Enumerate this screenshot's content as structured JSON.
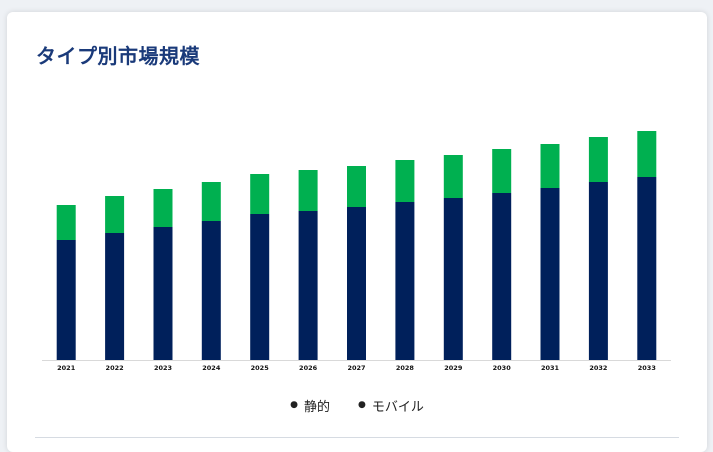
{
  "page": {
    "title": "タイプ別市場規模"
  },
  "legend": {
    "items": [
      {
        "label": "静的",
        "color": "#00205b"
      },
      {
        "label": "モバイル",
        "color": "#00b050"
      }
    ]
  },
  "chart_data": {
    "type": "bar",
    "stacked": true,
    "title": "タイプ別市場規模",
    "xlabel": "",
    "ylabel": "",
    "ylim": [
      0,
      230
    ],
    "grid": false,
    "legend_position": "bottom",
    "categories": [
      "2021",
      "2022",
      "2023",
      "2024",
      "2025",
      "2026",
      "2027",
      "2028",
      "2029",
      "2030",
      "2031",
      "2032",
      "2033"
    ],
    "series": [
      {
        "name": "静的",
        "color": "#00205b",
        "values": [
          120,
          127,
          133,
          139,
          146,
          149,
          153,
          158,
          162,
          167,
          172,
          178,
          183
        ]
      },
      {
        "name": "モバイル",
        "color": "#00b050",
        "values": [
          35,
          37,
          38,
          39,
          40,
          41,
          41,
          42,
          43,
          44,
          44,
          45,
          46
        ]
      }
    ]
  }
}
